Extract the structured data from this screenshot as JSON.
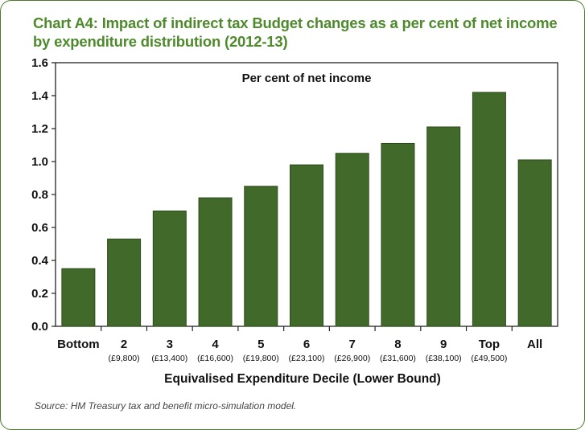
{
  "title_lines": [
    "Chart A4: Impact of indirect tax Budget changes as a per cent of net income",
    "by expenditure distribution (2012-13)"
  ],
  "source": "Source: HM Treasury tax and benefit micro-simulation model.",
  "colors": {
    "title": "#4e8a2c",
    "bar": "#41692a",
    "bar_stroke": "#2e4a1c",
    "frame": "#4c7a2a"
  },
  "chart_data": {
    "type": "bar",
    "inner_title": "Per cent of net income",
    "xlabel": "Equivalised Expenditure Decile (Lower Bound)",
    "ylabel": "",
    "ylim": [
      0,
      1.6
    ],
    "yticks": [
      "0.0",
      "0.2",
      "0.4",
      "0.6",
      "0.8",
      "1.0",
      "1.2",
      "1.4",
      "1.6"
    ],
    "grid": false,
    "categories": [
      "Bottom",
      "2",
      "3",
      "4",
      "5",
      "6",
      "7",
      "8",
      "9",
      "Top",
      "All"
    ],
    "sublabels": [
      "",
      "(£9,800)",
      "(£13,400)",
      "(£16,600)",
      "(£19,800)",
      "(£23,100)",
      "(£26,900)",
      "(£31,600)",
      "(£38,100)",
      "(£49,500)",
      ""
    ],
    "values": [
      0.35,
      0.53,
      0.7,
      0.78,
      0.85,
      0.98,
      1.05,
      1.11,
      1.21,
      1.42,
      1.01
    ]
  }
}
